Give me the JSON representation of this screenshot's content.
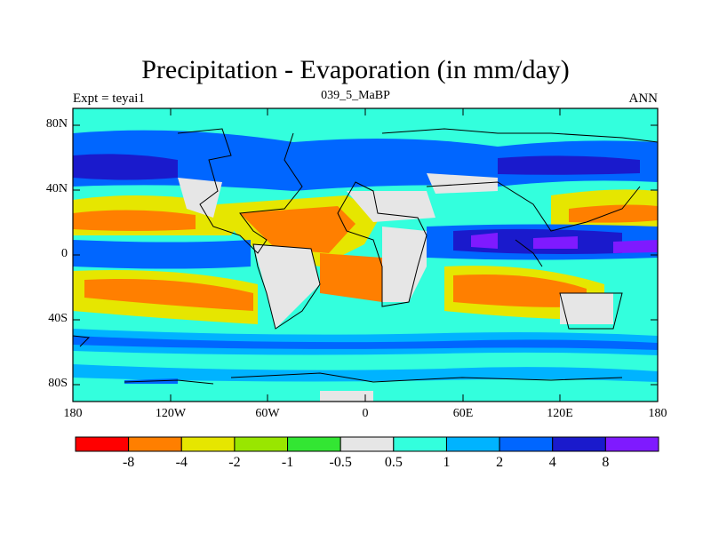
{
  "header": {
    "title": "Precipitation - Evaporation (in mm/day)",
    "left_label": "Expt = teyai1",
    "center_label": "039_5_MaBP",
    "right_label": "ANN"
  },
  "axes": {
    "y_ticks": [
      "80N",
      "40N",
      "0",
      "40S",
      "80S"
    ],
    "x_ticks": [
      "180",
      "120W",
      "60W",
      "0",
      "60E",
      "120E",
      "180"
    ]
  },
  "colorbar": {
    "colors": [
      "#ff0000",
      "#ff7f00",
      "#e6e600",
      "#99e600",
      "#33e633",
      "#e6e6e6",
      "#33ffdd",
      "#00b3ff",
      "#0066ff",
      "#1a1acc",
      "#7f1aff"
    ],
    "labels": [
      "-8",
      "-4",
      "-2",
      "-1",
      "-0.5",
      "0.5",
      "1",
      "2",
      "4",
      "8"
    ]
  },
  "map_colors": {
    "ocean_wet": "#00b3ff",
    "cyan": "#33ffdd",
    "blue": "#0066ff",
    "deep": "#1a1acc",
    "violet": "#7f1aff",
    "dry_yellow": "#e6e600",
    "dry_orange": "#ff7f00",
    "grey": "#e6e6e6",
    "green": "#99e600"
  }
}
